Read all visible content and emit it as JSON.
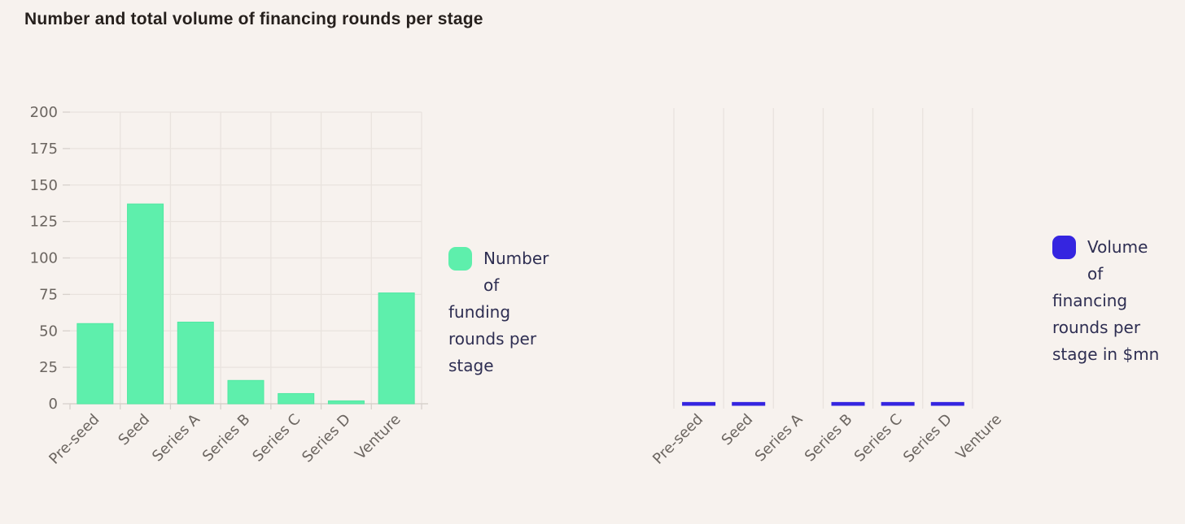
{
  "page": {
    "title": "Number and total volume of financing rounds per stage",
    "background": "#F7F2EE"
  },
  "colors": {
    "accent_green": "#5EEFAC",
    "accent_green_stroke": "#50E8A2",
    "accent_blue": "#3525E0",
    "title_text": "#26201D",
    "legend_text": "#2E2E52",
    "axis_text": "#6B6560",
    "gridline": "#E9E3DE",
    "axis_line": "#D7D1CC"
  },
  "legends": [
    {
      "label": "Number of funding rounds per stage",
      "swatch_color": "#5EEFAC"
    },
    {
      "label": "Volume of financing rounds per stage in $mn",
      "swatch_color": "#3525E0"
    }
  ],
  "chart_data": [
    {
      "type": "bar",
      "title": "Number of funding rounds per stage",
      "categories": [
        "Pre-seed",
        "Seed",
        "Series A",
        "Series B",
        "Series C",
        "Series D",
        "Venture"
      ],
      "values": [
        55,
        137,
        56,
        16,
        7,
        2,
        76
      ],
      "bar_color": "#5EEFAC",
      "bar_stroke": "#50E8A2",
      "xlabel": "",
      "ylabel": "",
      "ylim": [
        0,
        200
      ],
      "yticks": [
        0,
        25,
        50,
        75,
        100,
        125,
        150,
        175,
        200
      ],
      "grid": "horizontal-and-vertical",
      "legend_position": "right-of-plot"
    },
    {
      "type": "bar",
      "title": "Volume of financing rounds per stage in $mn",
      "categories": [
        "Pre-seed",
        "Seed",
        "Series A",
        "Series B",
        "Series C",
        "Series D",
        "Venture"
      ],
      "values": [
        2,
        2,
        0,
        2,
        2,
        2,
        0
      ],
      "note": "y-axis has no tick labels; visible bars are uniform minimal-height dashes, none for Series A and Venture",
      "bar_color": "#3525E0",
      "bar_stroke": "#3525E0",
      "xlabel": "",
      "ylabel": "",
      "ylim": [
        0,
        200
      ],
      "yticks": [],
      "grid": "vertical-only",
      "legend_position": "right-of-plot"
    }
  ]
}
